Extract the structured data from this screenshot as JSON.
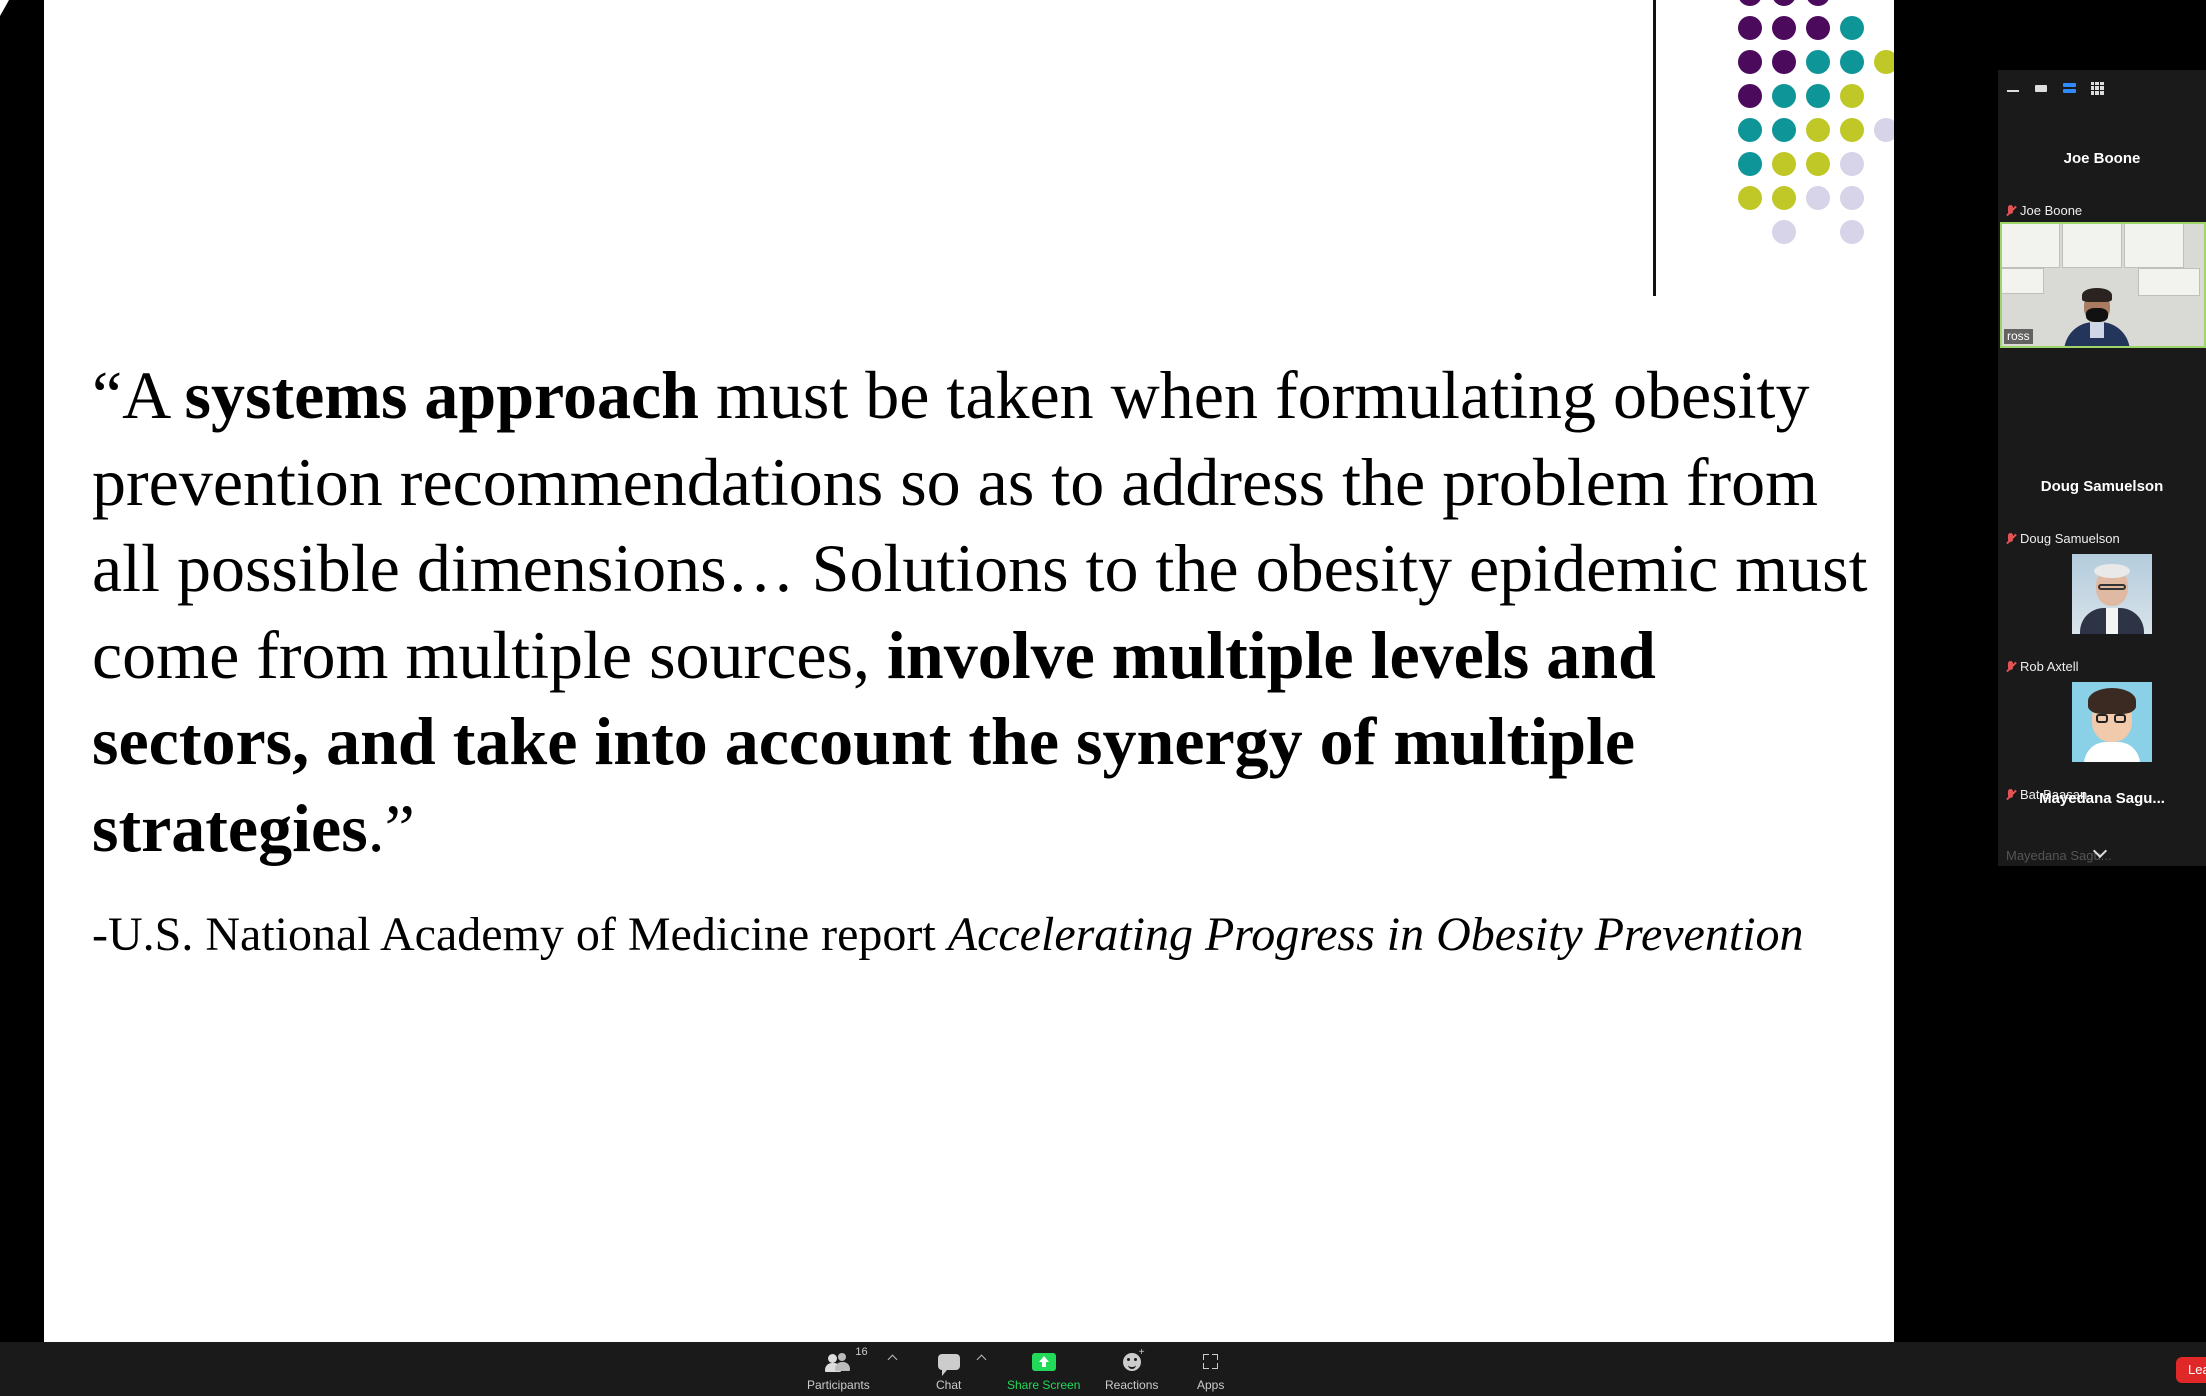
{
  "slide": {
    "quote": {
      "s1": "“A ",
      "b1": "systems approach",
      "s2": " must be taken when formulating obesity prevention recommendations so as to address the problem from all possible dimensions… Solutions to the obesity epidemic must come from multiple sources, ",
      "b2": "involve multiple levels and sectors, and take into account the synergy of multiple strategies",
      "s3": ".”"
    },
    "attribution": {
      "prefix": "-U.S. National Academy of Medicine report ",
      "title": "Accelerating Progress in Obesity Prevention"
    },
    "dot_colors": {
      "purple": "#4b0a5c",
      "teal": "#0e9597",
      "lime": "#bfc827",
      "lavender": "#d7d3e8"
    }
  },
  "panel": {
    "participants": [
      {
        "display_name": "Joe Boone",
        "label": "Joe Boone",
        "muted": true
      },
      {
        "video_label": "ross"
      },
      {
        "display_name": "Doug Samuelson",
        "label": "Doug Samuelson",
        "muted": true
      },
      {
        "label": "Rob Axtell",
        "muted": true
      },
      {
        "label": "Bat Baasan",
        "muted": true
      },
      {
        "display_name": "Mayedana  Sagu...",
        "label": "Mayedana Sagu...",
        "muted": true
      }
    ]
  },
  "toolbar": {
    "participants_label": "Participants",
    "participants_count": "16",
    "chat_label": "Chat",
    "share_label": "Share Screen",
    "reactions_label": "Reactions",
    "apps_label": "Apps",
    "leave_label": "Leave",
    "share_color": "#23d959",
    "leave_color": "#e02828"
  }
}
